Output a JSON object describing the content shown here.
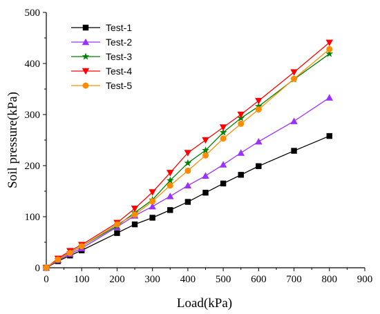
{
  "chart_data": {
    "type": "line",
    "xlabel": "Load(kPa)",
    "ylabel": "Soil pressure(kPa)",
    "xlim": [
      0,
      900
    ],
    "ylim": [
      0,
      500
    ],
    "xticks": [
      0,
      100,
      200,
      300,
      400,
      500,
      600,
      700,
      800,
      900
    ],
    "yticks": [
      0,
      100,
      200,
      300,
      400,
      500
    ],
    "grid": false,
    "legend_position": "top-left",
    "series": [
      {
        "name": "Test-1",
        "color": "#000000",
        "marker": "square",
        "x": [
          0,
          33,
          67,
          100,
          200,
          250,
          300,
          350,
          400,
          450,
          500,
          550,
          600,
          700,
          800
        ],
        "y": [
          0,
          13,
          24,
          34,
          68,
          85,
          98,
          113,
          129,
          147,
          165,
          182,
          199,
          229,
          258
        ]
      },
      {
        "name": "Test-2",
        "color": "#9b30ff",
        "marker": "triangle-up",
        "x": [
          0,
          33,
          67,
          100,
          200,
          250,
          300,
          350,
          400,
          450,
          500,
          550,
          600,
          700,
          800
        ],
        "y": [
          0,
          15,
          27,
          38,
          80,
          102,
          120,
          140,
          161,
          180,
          202,
          225,
          247,
          287,
          333
        ]
      },
      {
        "name": "Test-3",
        "color": "#008000",
        "marker": "star",
        "x": [
          0,
          33,
          67,
          100,
          200,
          250,
          300,
          350,
          400,
          450,
          500,
          550,
          600,
          700,
          800
        ],
        "y": [
          0,
          16,
          30,
          42,
          82,
          108,
          133,
          171,
          205,
          230,
          265,
          293,
          316,
          369,
          419
        ]
      },
      {
        "name": "Test-4",
        "color": "#ff0000",
        "marker": "triangle-down",
        "x": [
          0,
          33,
          67,
          100,
          200,
          250,
          300,
          350,
          400,
          450,
          500,
          550,
          600,
          700,
          800
        ],
        "y": [
          0,
          18,
          33,
          45,
          88,
          116,
          148,
          186,
          225,
          250,
          275,
          300,
          327,
          383,
          441
        ]
      },
      {
        "name": "Test-5",
        "color": "#ff8c00",
        "marker": "circle",
        "x": [
          0,
          33,
          67,
          100,
          200,
          250,
          300,
          350,
          400,
          450,
          500,
          550,
          600,
          700,
          800
        ],
        "y": [
          0,
          16,
          29,
          42,
          85,
          104,
          130,
          161,
          190,
          220,
          253,
          282,
          310,
          370,
          428
        ]
      }
    ]
  }
}
